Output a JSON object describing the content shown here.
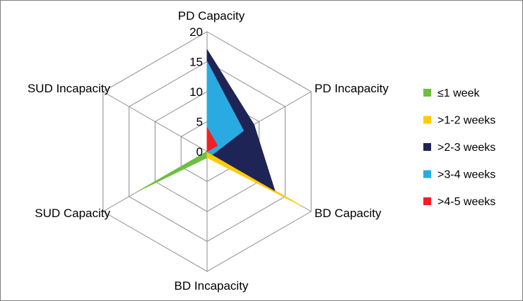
{
  "chart_data": {
    "type": "radar",
    "axes": [
      "PD Capacity",
      "PD Incapacity",
      "BD Capacity",
      "BD Incapacity",
      "SUD Capacity",
      "SUD Incapacity"
    ],
    "rlim": [
      0,
      20
    ],
    "ticks": [
      "0",
      "5",
      "10",
      "15",
      "20"
    ],
    "tick_values": [
      0,
      5,
      10,
      15,
      20
    ],
    "legend_position": "right",
    "series": [
      {
        "name": "≤1 week",
        "color": "#6cbf3f",
        "values": [
          0,
          0,
          0,
          1,
          13,
          0
        ]
      },
      {
        "name": ">1-2 weeks",
        "color": "#ffcc00",
        "values": [
          0,
          0,
          18,
          1,
          0,
          0
        ]
      },
      {
        "name": ">2-3 weeks",
        "color": "#1f2456",
        "values": [
          17,
          9,
          13,
          0,
          0,
          0
        ]
      },
      {
        "name": ">3-4 weeks",
        "color": "#29abe2",
        "values": [
          15,
          7,
          1,
          0,
          0,
          0
        ]
      },
      {
        "name": ">4-5 weeks",
        "color": "#ee2224",
        "values": [
          4,
          2,
          0,
          0,
          0,
          0
        ]
      }
    ]
  }
}
